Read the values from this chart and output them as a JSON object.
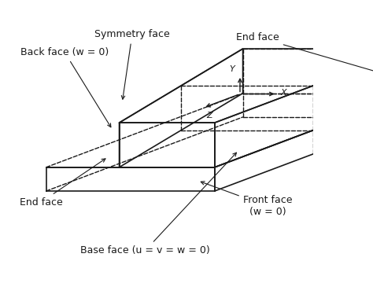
{
  "background_color": "#ffffff",
  "line_color": "#1a1a1a",
  "text_color": "#1a1a1a",
  "labels": {
    "symmetry_face": "Symmetry face",
    "back_face": "Back face (w = 0)",
    "end_face_top": "End face",
    "end_face_bottom": "End face",
    "front_face": "Front face\n(w = 0)",
    "base_face": "Base face (u = v = w = 0)"
  },
  "axis_labels": {
    "x": "X",
    "y": "Y",
    "z": "Z"
  },
  "lw_solid": 1.2,
  "lw_dashed": 1.0,
  "fontsize": 9
}
